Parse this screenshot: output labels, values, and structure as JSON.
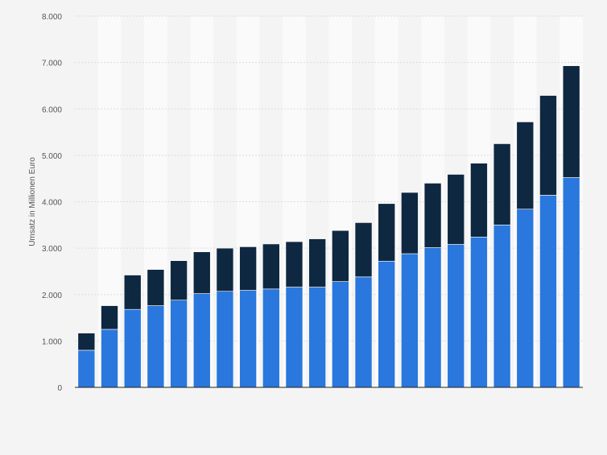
{
  "chart_data": {
    "type": "bar",
    "stacked": true,
    "title": "",
    "xlabel": "",
    "ylabel": "Umsatz in Millionen Euro",
    "ylim": [
      0,
      8000
    ],
    "yticks": [
      0,
      1000,
      2000,
      3000,
      4000,
      5000,
      6000,
      7000,
      8000
    ],
    "ytick_labels": [
      "0",
      "1.000",
      "2.000",
      "3.000",
      "4.000",
      "5.000",
      "6.000",
      "7.000",
      "8.000"
    ],
    "categories": [
      "",
      "",
      "",
      "",
      "",
      "",
      "",
      "",
      "",
      "",
      "",
      "",
      "",
      "",
      "",
      "",
      "",
      "",
      "",
      "",
      "",
      ""
    ],
    "grid": true,
    "alternating_column_bands": true,
    "series": [
      {
        "color": "#2a77dd",
        "values": [
          800,
          1250,
          1680,
          1760,
          1880,
          2020,
          2070,
          2090,
          2120,
          2160,
          2160,
          2280,
          2380,
          2720,
          2880,
          3010,
          3080,
          3240,
          3500,
          3840,
          4140,
          4520
        ]
      },
      {
        "color": "#0f2841",
        "values": [
          370,
          510,
          740,
          780,
          850,
          900,
          930,
          940,
          970,
          980,
          1040,
          1100,
          1170,
          1240,
          1320,
          1390,
          1510,
          1590,
          1750,
          1880,
          2150,
          2410
        ]
      }
    ]
  },
  "colors": {
    "background": "#f4f4f4",
    "band": "#fafafa",
    "gridline": "#dcdcdc",
    "axis": "#222222",
    "tick_text": "#555555"
  }
}
